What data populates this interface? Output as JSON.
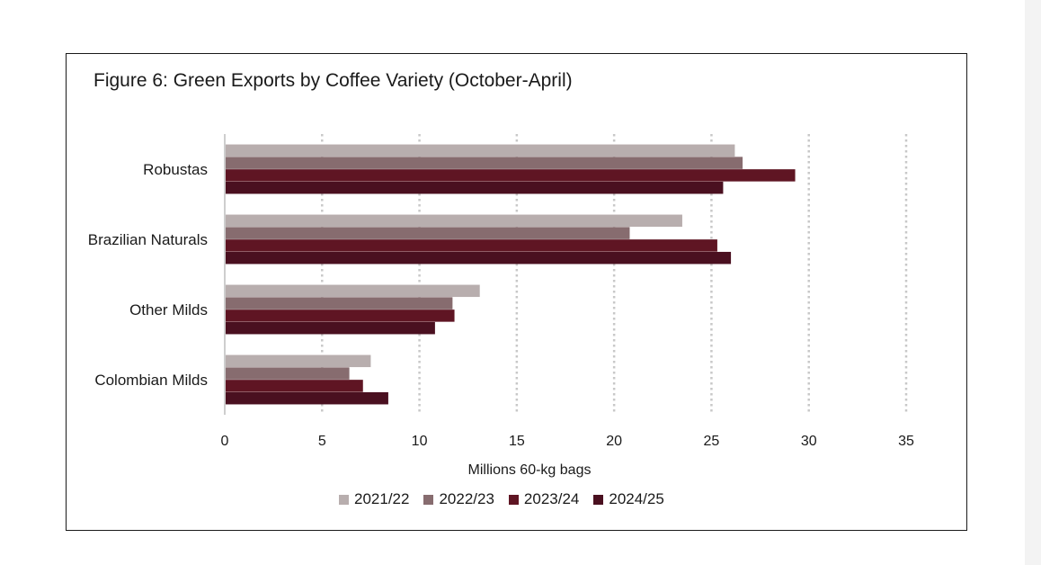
{
  "chart_data": {
    "type": "bar",
    "orientation": "horizontal",
    "title": "Figure 6: Green Exports by Coffee Variety (October-April)",
    "xlabel": "Millions 60-kg bags",
    "ylabel": "",
    "xlim": [
      0,
      35
    ],
    "x_ticks": [
      "0",
      "5",
      "10",
      "15",
      "20",
      "25",
      "30",
      "35"
    ],
    "grid": "vertical dotted",
    "legend_position": "bottom",
    "categories": [
      "Robustas",
      "Brazilian Naturals",
      "Other Milds",
      "Colombian Milds"
    ],
    "series": [
      {
        "name": "2021/22",
        "color": "#b8aeae",
        "values": [
          26.2,
          23.5,
          13.1,
          7.5
        ]
      },
      {
        "name": "2022/23",
        "color": "#876c6f",
        "values": [
          26.6,
          20.8,
          11.7,
          6.4
        ]
      },
      {
        "name": "2023/24",
        "color": "#5f1523",
        "values": [
          29.3,
          25.3,
          11.8,
          7.1
        ]
      },
      {
        "name": "2024/25",
        "color": "#4a1020",
        "values": [
          25.6,
          26.0,
          10.8,
          8.4
        ]
      }
    ]
  }
}
